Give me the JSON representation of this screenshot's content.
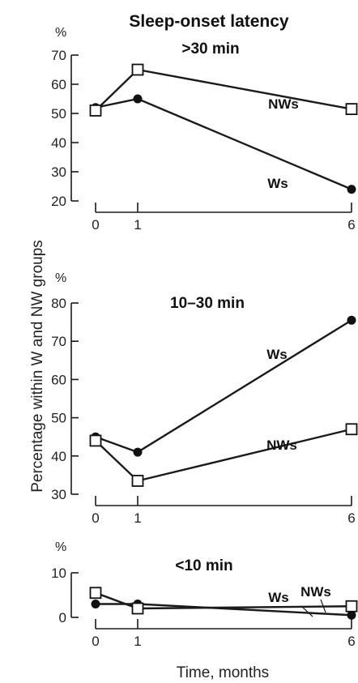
{
  "title": "Sleep-onset latency",
  "xlabel": "Time, months",
  "ylabel": "Percentage within W and NW groups",
  "unit": "%",
  "chart_data": [
    {
      "type": "line",
      "panel_title": ">30 min",
      "x": [
        0,
        1,
        6
      ],
      "ylim": [
        20,
        70
      ],
      "yticks": [
        20,
        30,
        40,
        50,
        60,
        70
      ],
      "series": [
        {
          "name": "Ws",
          "marker": "filled-circle",
          "values": [
            52,
            55,
            24
          ]
        },
        {
          "name": "NWs",
          "marker": "open-square",
          "values": [
            51,
            65,
            51.5
          ]
        }
      ]
    },
    {
      "type": "line",
      "panel_title": "10–30 min",
      "x": [
        0,
        1,
        6
      ],
      "ylim": [
        30,
        80
      ],
      "yticks": [
        30,
        40,
        50,
        60,
        70,
        80
      ],
      "series": [
        {
          "name": "Ws",
          "marker": "filled-circle",
          "values": [
            45,
            41,
            75.5
          ]
        },
        {
          "name": "NWs",
          "marker": "open-square",
          "values": [
            44,
            33.5,
            47
          ]
        }
      ]
    },
    {
      "type": "line",
      "panel_title": "<10 min",
      "x": [
        0,
        1,
        6
      ],
      "ylim": [
        0,
        10
      ],
      "yticks": [
        0,
        10
      ],
      "series": [
        {
          "name": "Ws",
          "marker": "filled-circle",
          "values": [
            3,
            3,
            0.5
          ]
        },
        {
          "name": "NWs",
          "marker": "open-square",
          "values": [
            5.5,
            2,
            2.5
          ]
        }
      ]
    }
  ]
}
